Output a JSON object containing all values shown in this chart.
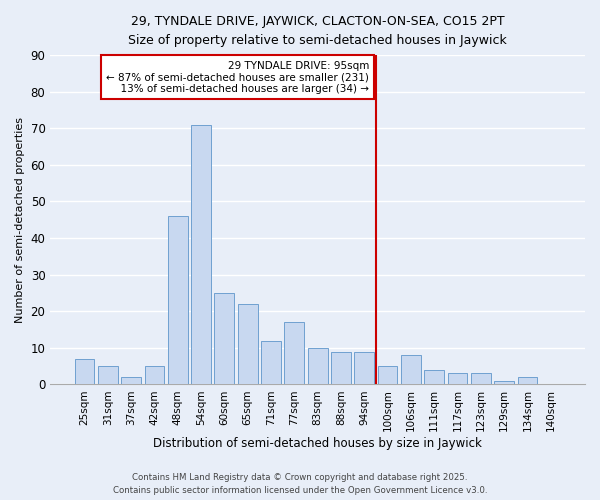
{
  "title": "29, TYNDALE DRIVE, JAYWICK, CLACTON-ON-SEA, CO15 2PT",
  "subtitle": "Size of property relative to semi-detached houses in Jaywick",
  "xlabel": "Distribution of semi-detached houses by size in Jaywick",
  "ylabel": "Number of semi-detached properties",
  "categories": [
    "25sqm",
    "31sqm",
    "37sqm",
    "42sqm",
    "48sqm",
    "54sqm",
    "60sqm",
    "65sqm",
    "71sqm",
    "77sqm",
    "83sqm",
    "88sqm",
    "94sqm",
    "100sqm",
    "106sqm",
    "111sqm",
    "117sqm",
    "123sqm",
    "129sqm",
    "134sqm",
    "140sqm"
  ],
  "values": [
    7,
    5,
    2,
    5,
    46,
    71,
    25,
    22,
    12,
    17,
    10,
    9,
    9,
    5,
    8,
    4,
    3,
    3,
    1,
    2,
    0
  ],
  "bar_color": "#c8d8f0",
  "bar_edge_color": "#6fa0d0",
  "background_color": "#e8eef8",
  "grid_color": "#ffffff",
  "vline_color": "#cc0000",
  "annotation_title": "29 TYNDALE DRIVE: 95sqm",
  "annotation_line1": "← 87% of semi-detached houses are smaller (231)",
  "annotation_line2": "  13% of semi-detached houses are larger (34) →",
  "annotation_box_color": "#ffffff",
  "annotation_box_edge": "#cc0000",
  "ylim": [
    0,
    90
  ],
  "yticks": [
    0,
    10,
    20,
    30,
    40,
    50,
    60,
    70,
    80,
    90
  ],
  "footer1": "Contains HM Land Registry data © Crown copyright and database right 2025.",
  "footer2": "Contains public sector information licensed under the Open Government Licence v3.0."
}
